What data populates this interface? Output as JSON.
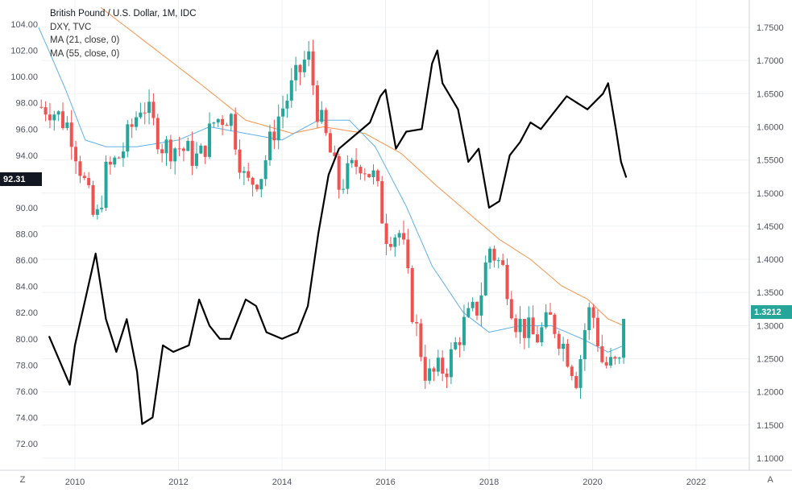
{
  "legend": {
    "title": "British Pound / U.S. Dollar, 1M, IDC",
    "overlay": "DXY, TVC",
    "ma21": "MA (21, close, 0)",
    "ma55": "MA (55, close, 0)"
  },
  "controls": {
    "left_button": "Z",
    "right_button": "A"
  },
  "price_tags": {
    "left": "92.31",
    "right": "1.3212"
  },
  "colors": {
    "up": "#26a69a",
    "down": "#ef5350",
    "ma21": "#5fb0e8",
    "ma55": "#f7934b",
    "dxy": "#000000",
    "grid": "#eef0f3",
    "tag_left": "#131722",
    "tag_right": "#26a69a"
  },
  "chart_data": {
    "type": "candlestick",
    "title": "British Pound / U.S. Dollar, 1M, IDC",
    "x_ticks": [
      "2010",
      "2012",
      "2014",
      "2016",
      "2018",
      "2020",
      "2022"
    ],
    "left_axis_ticks": [
      "104.00",
      "102.00",
      "100.00",
      "98.00",
      "96.00",
      "94.00",
      "90.00",
      "88.00",
      "86.00",
      "84.00",
      "82.00",
      "80.00",
      "78.00",
      "76.00",
      "74.00",
      "72.00"
    ],
    "right_axis_ticks": [
      "1.7500",
      "1.7000",
      "1.6500",
      "1.6000",
      "1.5500",
      "1.5000",
      "1.4500",
      "1.4000",
      "1.3500",
      "1.3000",
      "1.2500",
      "1.2000",
      "1.1500",
      "1.1000"
    ],
    "right_ylim": [
      1.07,
      1.78
    ],
    "left_ylim": [
      70.3,
      105.8
    ],
    "last_value_gbpusd": 1.3212,
    "last_value_dxy": 92.31,
    "gbpusd_monthly_close_anchors": [
      [
        2009.5,
        1.63
      ],
      [
        2009.9,
        1.6
      ],
      [
        2010.4,
        1.45
      ],
      [
        2010.6,
        1.53
      ],
      [
        2010.9,
        1.56
      ],
      [
        2011.3,
        1.64
      ],
      [
        2011.7,
        1.57
      ],
      [
        2012.0,
        1.57
      ],
      [
        2012.4,
        1.55
      ],
      [
        2012.7,
        1.61
      ],
      [
        2013.0,
        1.62
      ],
      [
        2013.3,
        1.51
      ],
      [
        2013.6,
        1.53
      ],
      [
        2013.9,
        1.61
      ],
      [
        2014.2,
        1.66
      ],
      [
        2014.5,
        1.71
      ],
      [
        2014.7,
        1.62
      ],
      [
        2014.9,
        1.57
      ],
      [
        2015.1,
        1.51
      ],
      [
        2015.5,
        1.55
      ],
      [
        2015.8,
        1.52
      ],
      [
        2016.0,
        1.44
      ],
      [
        2016.3,
        1.44
      ],
      [
        2016.5,
        1.33
      ],
      [
        2016.8,
        1.22
      ],
      [
        2017.2,
        1.24
      ],
      [
        2017.5,
        1.3
      ],
      [
        2017.8,
        1.33
      ],
      [
        2018.0,
        1.42
      ],
      [
        2018.3,
        1.38
      ],
      [
        2018.5,
        1.31
      ],
      [
        2018.9,
        1.28
      ],
      [
        2019.2,
        1.31
      ],
      [
        2019.5,
        1.26
      ],
      [
        2019.7,
        1.22
      ],
      [
        2019.9,
        1.32
      ],
      [
        2020.0,
        1.32
      ],
      [
        2020.2,
        1.24
      ],
      [
        2020.4,
        1.24
      ],
      [
        2020.55,
        1.24
      ],
      [
        2020.6,
        1.32
      ]
    ],
    "ma21_anchors": [
      [
        2009.3,
        1.75
      ],
      [
        2009.8,
        1.66
      ],
      [
        2010.2,
        1.58
      ],
      [
        2010.6,
        1.57
      ],
      [
        2011.2,
        1.57
      ],
      [
        2012.0,
        1.58
      ],
      [
        2012.6,
        1.6
      ],
      [
        2013.3,
        1.59
      ],
      [
        2014.0,
        1.58
      ],
      [
        2014.7,
        1.61
      ],
      [
        2015.3,
        1.61
      ],
      [
        2015.8,
        1.57
      ],
      [
        2016.4,
        1.48
      ],
      [
        2016.9,
        1.39
      ],
      [
        2017.5,
        1.32
      ],
      [
        2018.0,
        1.29
      ],
      [
        2018.6,
        1.3
      ],
      [
        2019.2,
        1.3
      ],
      [
        2019.8,
        1.28
      ],
      [
        2020.3,
        1.26
      ],
      [
        2020.6,
        1.27
      ]
    ],
    "ma55_anchors": [
      [
        2010.5,
        1.78
      ],
      [
        2011.5,
        1.72
      ],
      [
        2012.5,
        1.66
      ],
      [
        2013.3,
        1.61
      ],
      [
        2014.2,
        1.59
      ],
      [
        2014.8,
        1.6
      ],
      [
        2015.6,
        1.59
      ],
      [
        2016.3,
        1.56
      ],
      [
        2017.0,
        1.51
      ],
      [
        2017.6,
        1.47
      ],
      [
        2018.2,
        1.43
      ],
      [
        2018.8,
        1.4
      ],
      [
        2019.4,
        1.36
      ],
      [
        2019.9,
        1.34
      ],
      [
        2020.3,
        1.31
      ],
      [
        2020.6,
        1.3
      ]
    ],
    "dxy_anchors": [
      [
        2009.5,
        80.2
      ],
      [
        2009.9,
        76.5
      ],
      [
        2010.0,
        79.5
      ],
      [
        2010.4,
        86.5
      ],
      [
        2010.6,
        81.5
      ],
      [
        2010.8,
        79.0
      ],
      [
        2011.0,
        81.5
      ],
      [
        2011.2,
        77.5
      ],
      [
        2011.3,
        73.5
      ],
      [
        2011.5,
        74.0
      ],
      [
        2011.7,
        79.5
      ],
      [
        2011.9,
        79.0
      ],
      [
        2012.2,
        79.5
      ],
      [
        2012.4,
        83.0
      ],
      [
        2012.6,
        81.0
      ],
      [
        2012.8,
        80.0
      ],
      [
        2013.0,
        80.0
      ],
      [
        2013.3,
        83.0
      ],
      [
        2013.5,
        82.5
      ],
      [
        2013.7,
        80.5
      ],
      [
        2014.0,
        80.0
      ],
      [
        2014.3,
        80.5
      ],
      [
        2014.5,
        82.5
      ],
      [
        2014.7,
        88.0
      ],
      [
        2014.9,
        92.5
      ],
      [
        2015.1,
        94.5
      ],
      [
        2015.4,
        95.5
      ],
      [
        2015.7,
        96.5
      ],
      [
        2015.9,
        98.5
      ],
      [
        2016.0,
        99.0
      ],
      [
        2016.2,
        94.5
      ],
      [
        2016.4,
        95.8
      ],
      [
        2016.7,
        96.0
      ],
      [
        2016.9,
        101.0
      ],
      [
        2017.0,
        102.0
      ],
      [
        2017.1,
        99.5
      ],
      [
        2017.4,
        97.5
      ],
      [
        2017.6,
        93.5
      ],
      [
        2017.8,
        94.5
      ],
      [
        2018.0,
        90.0
      ],
      [
        2018.2,
        90.5
      ],
      [
        2018.4,
        94.0
      ],
      [
        2018.6,
        95.0
      ],
      [
        2018.8,
        96.5
      ],
      [
        2019.0,
        96.0
      ],
      [
        2019.3,
        97.5
      ],
      [
        2019.5,
        98.5
      ],
      [
        2019.7,
        98.0
      ],
      [
        2019.9,
        97.5
      ],
      [
        2020.2,
        98.7
      ],
      [
        2020.3,
        99.5
      ],
      [
        2020.45,
        96.0
      ],
      [
        2020.55,
        93.5
      ],
      [
        2020.65,
        92.3
      ]
    ]
  }
}
